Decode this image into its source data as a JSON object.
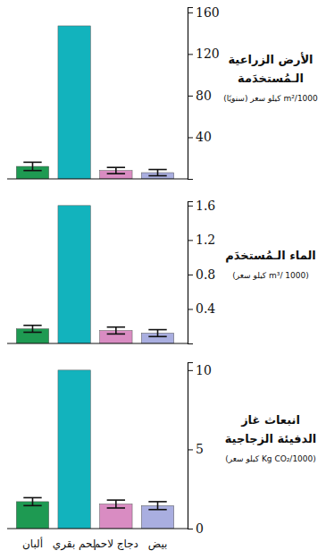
{
  "chart_data": [
    {
      "type": "bar",
      "ylabel": [
        "الأرض الزراعية",
        "الـمُستخدَمة",
        "m²/1000 كيلو سعر (سنويًا)"
      ],
      "categories": [
        "ألبان",
        "لحم بقري",
        "دجاج لاحم",
        "بيض"
      ],
      "values": [
        12,
        147,
        8,
        6
      ],
      "errors": [
        4,
        null,
        3,
        3
      ],
      "colors": [
        "#1e9a52",
        "#12b3bd",
        "#d98cc2",
        "#a9aee0"
      ],
      "ylim": [
        0,
        165
      ],
      "yticks": [
        40,
        80,
        120,
        160
      ],
      "tick_labels": "y"
    },
    {
      "type": "bar",
      "ylabel": [
        "الماء الـمُستخدَم",
        "(m³/ 1000 كيلو سعر)"
      ],
      "categories": [
        "ألبان",
        "لحم بقري",
        "دجاج لاحم",
        "بيض"
      ],
      "values": [
        0.17,
        1.6,
        0.15,
        0.12
      ],
      "errors": [
        0.04,
        null,
        0.04,
        0.04
      ],
      "colors": [
        "#1e9a52",
        "#12b3bd",
        "#d98cc2",
        "#a9aee0"
      ],
      "ylim": [
        0,
        1.65
      ],
      "yticks": [
        0.4,
        0.8,
        1.2,
        1.6
      ],
      "tick_labels": "y"
    },
    {
      "type": "bar",
      "ylabel": [
        "انبعاث غاز",
        "الدفيئة الزجاجية",
        "(Kg CO₂/1000 كيلو سعر)"
      ],
      "categories": [
        "ألبان",
        "لحم بقري",
        "دجاج لاحم",
        "بيض"
      ],
      "values": [
        1.7,
        10,
        1.55,
        1.45
      ],
      "errors": [
        0.25,
        null,
        0.25,
        0.25
      ],
      "colors": [
        "#1e9a52",
        "#12b3bd",
        "#d98cc2",
        "#a9aee0"
      ],
      "ylim": [
        0,
        10.5
      ],
      "yticks": [
        0,
        5,
        10
      ]
    }
  ]
}
